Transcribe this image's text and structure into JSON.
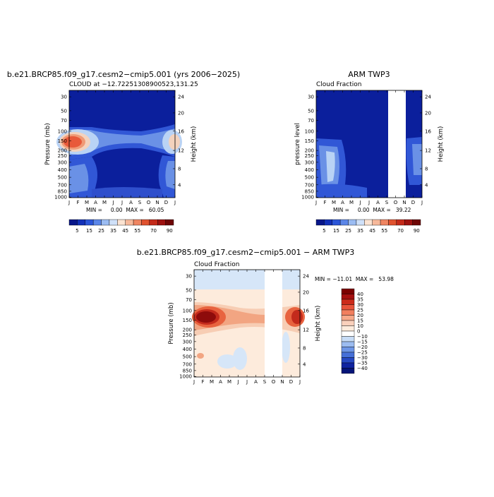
{
  "chart_data": [
    {
      "type": "heatmap",
      "title": "b.e21.BRCP85.f09_g17.cesm2−cmip5.001 (yrs 2006−2025)",
      "subtitle_left": "CLOUD at −12.72251308900523,131.25",
      "subtitle_right": "",
      "ylabel": "Pressure (mb)",
      "y2label": "Height (km)",
      "x_ticks": [
        "J",
        "F",
        "M",
        "A",
        "M",
        "J",
        "J",
        "A",
        "S",
        "O",
        "N",
        "D",
        "J"
      ],
      "y_ticks": [
        "30",
        "50",
        "70",
        "100",
        "150",
        "200",
        "250",
        "300",
        "400",
        "500",
        "700",
        "850",
        "1000"
      ],
      "y2_ticks": [
        "24",
        "20",
        "16",
        "12",
        "8",
        "4"
      ],
      "stats": "MIN =     0.00  MAX =   60.05",
      "colorbar_labels": [
        "5",
        "15",
        "25",
        "35",
        "45",
        "55",
        "70",
        "90"
      ],
      "missing_months": []
    },
    {
      "type": "heatmap",
      "title": "ARM TWP3",
      "subtitle_left": "Cloud Fraction",
      "subtitle_right": "",
      "ylabel": "pressure level",
      "y2label": "Height (km)",
      "x_ticks": [
        "J",
        "F",
        "M",
        "A",
        "M",
        "J",
        "J",
        "A",
        "S",
        "O",
        "N",
        "D",
        "J"
      ],
      "y_ticks": [
        "30",
        "50",
        "70",
        "100",
        "150",
        "200",
        "250",
        "300",
        "400",
        "500",
        "700",
        "850",
        "1000"
      ],
      "y2_ticks": [
        "24",
        "20",
        "16",
        "12",
        "8",
        "4"
      ],
      "stats": "MIN =     0.00  MAX =   39.22",
      "colorbar_labels": [
        "5",
        "15",
        "25",
        "35",
        "45",
        "55",
        "70",
        "90"
      ],
      "missing_months": [
        9,
        10
      ]
    },
    {
      "type": "heatmap",
      "title": "b.e21.BRCP85.f09_g17.cesm2−cmip5.001 − ARM TWP3",
      "subtitle_left": "Cloud Fraction",
      "subtitle_right": "",
      "ylabel": "Pressure (mb)",
      "y2label": "Height (km)",
      "x_ticks": [
        "J",
        "F",
        "M",
        "A",
        "M",
        "J",
        "J",
        "A",
        "S",
        "O",
        "N",
        "D",
        "J"
      ],
      "y_ticks": [
        "30",
        "50",
        "70",
        "100",
        "150",
        "200",
        "250",
        "300",
        "400",
        "500",
        "700",
        "850",
        "1000"
      ],
      "y2_ticks": [
        "24",
        "20",
        "16",
        "12",
        "8",
        "4"
      ],
      "stats": "MIN = −11.01  MAX =   53.98",
      "colorbar_labels": [
        "40",
        "35",
        "30",
        "25",
        "20",
        "15",
        "10",
        "0",
        "−10",
        "−15",
        "−20",
        "−25",
        "−30",
        "−35",
        "−40"
      ],
      "missing_months": [
        9,
        10
      ]
    }
  ]
}
